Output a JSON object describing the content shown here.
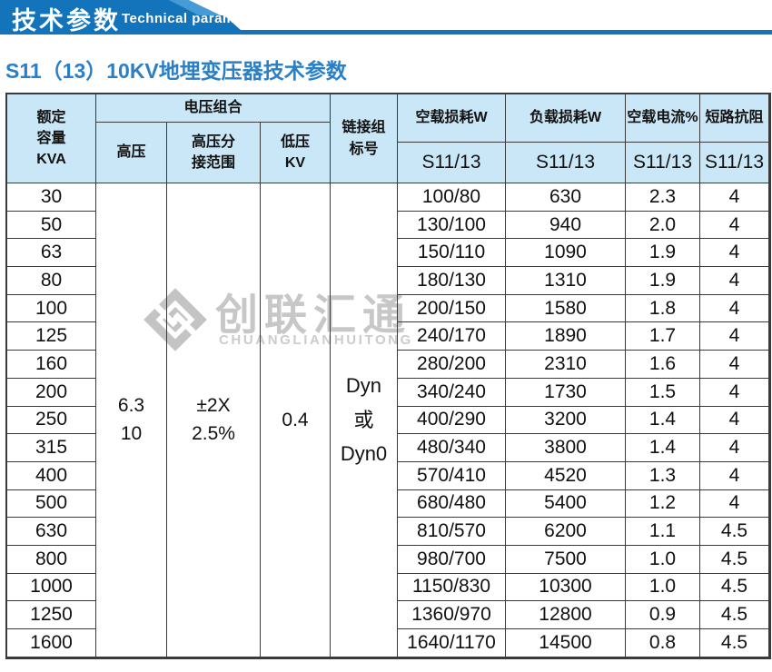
{
  "banner": {
    "title": "技术参数",
    "subtitle_en": "Technical parameter"
  },
  "page_title": "S11（13）10KV地埋变压器技术参数",
  "watermark": {
    "brand": "创联汇通",
    "brand_en": "CHUANGLIANHUITONG"
  },
  "table": {
    "headers": {
      "capacity": "额定\n容量\nKVA",
      "voltage_group": "电压组合",
      "hv": "高压",
      "hv_tap": "高压分\n接范围",
      "lv": "低压\nKV",
      "link_group": "链接组\n标号",
      "no_load_loss": "空载损耗W",
      "load_loss": "负载损耗W",
      "no_load_current": "空载电流%",
      "impedance": "短路抗阻",
      "s11_13": "S11/13"
    },
    "merged": {
      "hv_value": "6.3\n10",
      "hv_tap_value": "±2X\n2.5%",
      "lv_value": "0.4",
      "link_value": "Dyn\n或\nDyn0"
    },
    "rows": [
      {
        "kva": "30",
        "no_load_loss": "100/80",
        "load_loss": "630",
        "no_load_current": "2.3",
        "impedance": "4"
      },
      {
        "kva": "50",
        "no_load_loss": "130/100",
        "load_loss": "940",
        "no_load_current": "2.0",
        "impedance": "4"
      },
      {
        "kva": "63",
        "no_load_loss": "150/110",
        "load_loss": "1090",
        "no_load_current": "1.9",
        "impedance": "4"
      },
      {
        "kva": "80",
        "no_load_loss": "180/130",
        "load_loss": "1310",
        "no_load_current": "1.9",
        "impedance": "4"
      },
      {
        "kva": "100",
        "no_load_loss": "200/150",
        "load_loss": "1580",
        "no_load_current": "1.8",
        "impedance": "4"
      },
      {
        "kva": "125",
        "no_load_loss": "240/170",
        "load_loss": "1890",
        "no_load_current": "1.7",
        "impedance": "4"
      },
      {
        "kva": "160",
        "no_load_loss": "280/200",
        "load_loss": "2310",
        "no_load_current": "1.6",
        "impedance": "4"
      },
      {
        "kva": "200",
        "no_load_loss": "340/240",
        "load_loss": "1730",
        "no_load_current": "1.5",
        "impedance": "4"
      },
      {
        "kva": "250",
        "no_load_loss": "400/290",
        "load_loss": "3200",
        "no_load_current": "1.4",
        "impedance": "4"
      },
      {
        "kva": "315",
        "no_load_loss": "480/340",
        "load_loss": "3800",
        "no_load_current": "1.4",
        "impedance": "4"
      },
      {
        "kva": "400",
        "no_load_loss": "570/410",
        "load_loss": "4520",
        "no_load_current": "1.3",
        "impedance": "4"
      },
      {
        "kva": "500",
        "no_load_loss": "680/480",
        "load_loss": "5400",
        "no_load_current": "1.2",
        "impedance": "4"
      },
      {
        "kva": "630",
        "no_load_loss": "810/570",
        "load_loss": "6200",
        "no_load_current": "1.1",
        "impedance": "4.5"
      },
      {
        "kva": "800",
        "no_load_loss": "980/700",
        "load_loss": "7500",
        "no_load_current": "1.0",
        "impedance": "4.5"
      },
      {
        "kva": "1000",
        "no_load_loss": "1150/830",
        "load_loss": "10300",
        "no_load_current": "1.0",
        "impedance": "4.5"
      },
      {
        "kva": "1250",
        "no_load_loss": "1360/970",
        "load_loss": "12800",
        "no_load_current": "0.9",
        "impedance": "4.5"
      },
      {
        "kva": "1600",
        "no_load_loss": "1640/1170",
        "load_loss": "14500",
        "no_load_current": "0.8",
        "impedance": "4.5"
      }
    ]
  }
}
